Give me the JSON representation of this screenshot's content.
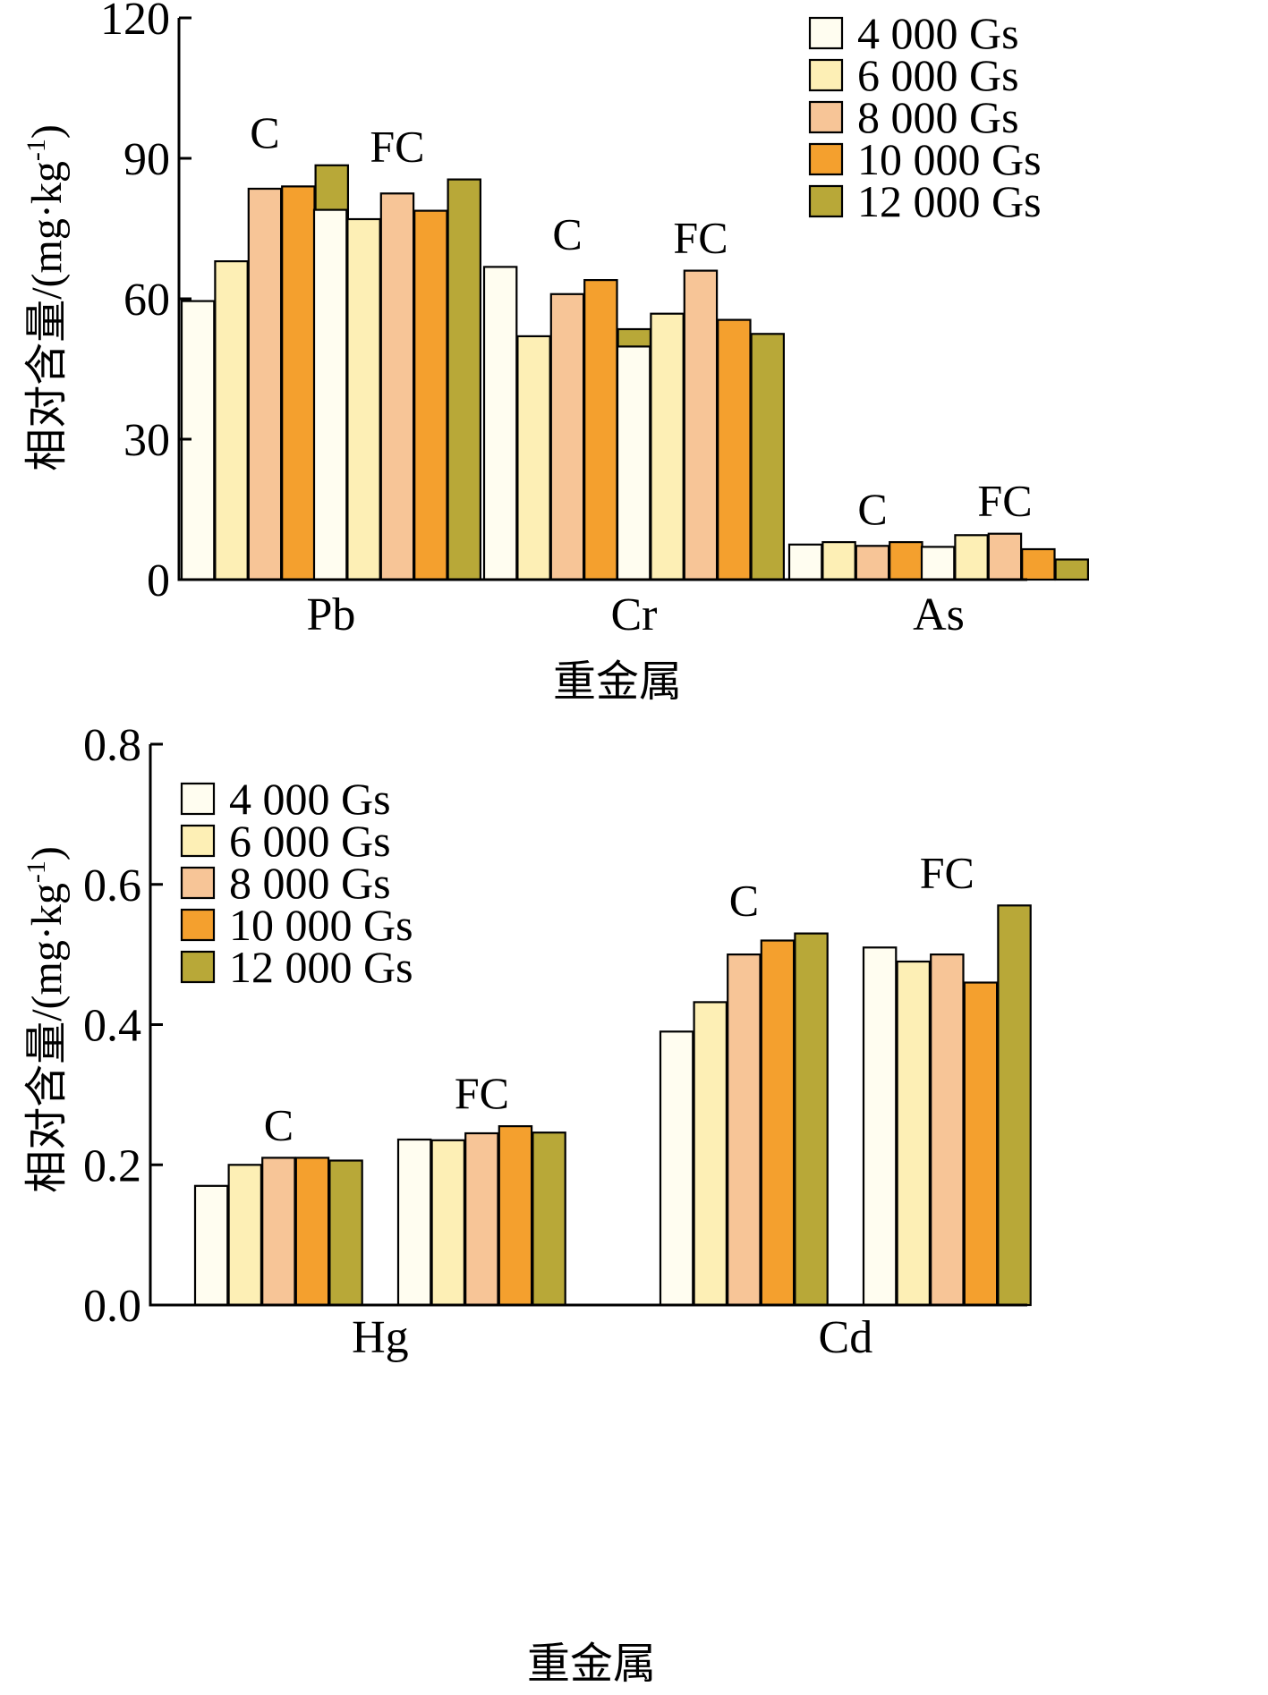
{
  "chart_data": [
    {
      "type": "bar",
      "xlabel": "重金属",
      "ylabel": "相对含量/(mg·kg-1)",
      "ylabel_parts": {
        "main": "相对含量/(mg·kg",
        "sup": "-1",
        "tail": ")"
      },
      "ylim": [
        0,
        120
      ],
      "yticks": [
        "0",
        "30",
        "60",
        "90",
        "120"
      ],
      "ytick_values": [
        0,
        30,
        60,
        90,
        120
      ],
      "categories": [
        "Pb",
        "Cr",
        "As"
      ],
      "group_labels": [
        "C",
        "FC"
      ],
      "legend_position": "top-right",
      "legend": [
        "4 000 Gs",
        "6 000 Gs",
        "8 000 Gs",
        "10 000 Gs",
        "12 000 Gs"
      ],
      "colors": [
        "#FFFDF0",
        "#FDEFB5",
        "#F7C597",
        "#F4A02E",
        "#B8A838"
      ],
      "series": [
        {
          "name": "4 000 Gs",
          "C": [
            59.5,
            66.8,
            7.5
          ],
          "FC": [
            79.0,
            49.8,
            7.0
          ]
        },
        {
          "name": "6 000 Gs",
          "C": [
            68.0,
            52.0,
            8.0
          ],
          "FC": [
            77.0,
            56.8,
            9.5
          ]
        },
        {
          "name": "8 000 Gs",
          "C": [
            83.5,
            61.0,
            7.2
          ],
          "FC": [
            82.5,
            66.0,
            9.8
          ]
        },
        {
          "name": "10 000 Gs",
          "C": [
            84.0,
            64.0,
            8.0
          ],
          "FC": [
            78.8,
            55.5,
            6.5
          ]
        },
        {
          "name": "12 000 Gs",
          "C": [
            88.5,
            53.5,
            6.2
          ],
          "FC": [
            85.5,
            52.5,
            4.3
          ]
        }
      ]
    },
    {
      "type": "bar",
      "xlabel": "重金属",
      "ylabel": "相对含量/(mg·kg-1)",
      "ylabel_parts": {
        "main": "相对含量/(mg·kg",
        "sup": "-1",
        "tail": ")"
      },
      "ylim": [
        0,
        0.8
      ],
      "yticks": [
        "0.0",
        "0.2",
        "0.4",
        "0.6",
        "0.8"
      ],
      "ytick_values": [
        0,
        0.2,
        0.4,
        0.6,
        0.8
      ],
      "categories": [
        "Hg",
        "Cd"
      ],
      "group_labels": [
        "C",
        "FC"
      ],
      "legend_position": "top-left",
      "legend": [
        "4 000 Gs",
        "6 000 Gs",
        "8 000 Gs",
        "10 000 Gs",
        "12 000 Gs"
      ],
      "colors": [
        "#FFFDF0",
        "#FDEFB5",
        "#F7C597",
        "#F4A02E",
        "#B8A838"
      ],
      "series": [
        {
          "name": "4 000 Gs",
          "C": [
            0.17,
            0.39
          ],
          "FC": [
            0.236,
            0.51
          ]
        },
        {
          "name": "6 000 Gs",
          "C": [
            0.2,
            0.432
          ],
          "FC": [
            0.235,
            0.49
          ]
        },
        {
          "name": "8 000 Gs",
          "C": [
            0.21,
            0.5
          ],
          "FC": [
            0.245,
            0.5
          ]
        },
        {
          "name": "10 000 Gs",
          "C": [
            0.21,
            0.52
          ],
          "FC": [
            0.255,
            0.46
          ]
        },
        {
          "name": "12 000 Gs",
          "C": [
            0.206,
            0.53
          ],
          "FC": [
            0.246,
            0.57
          ]
        }
      ]
    }
  ]
}
